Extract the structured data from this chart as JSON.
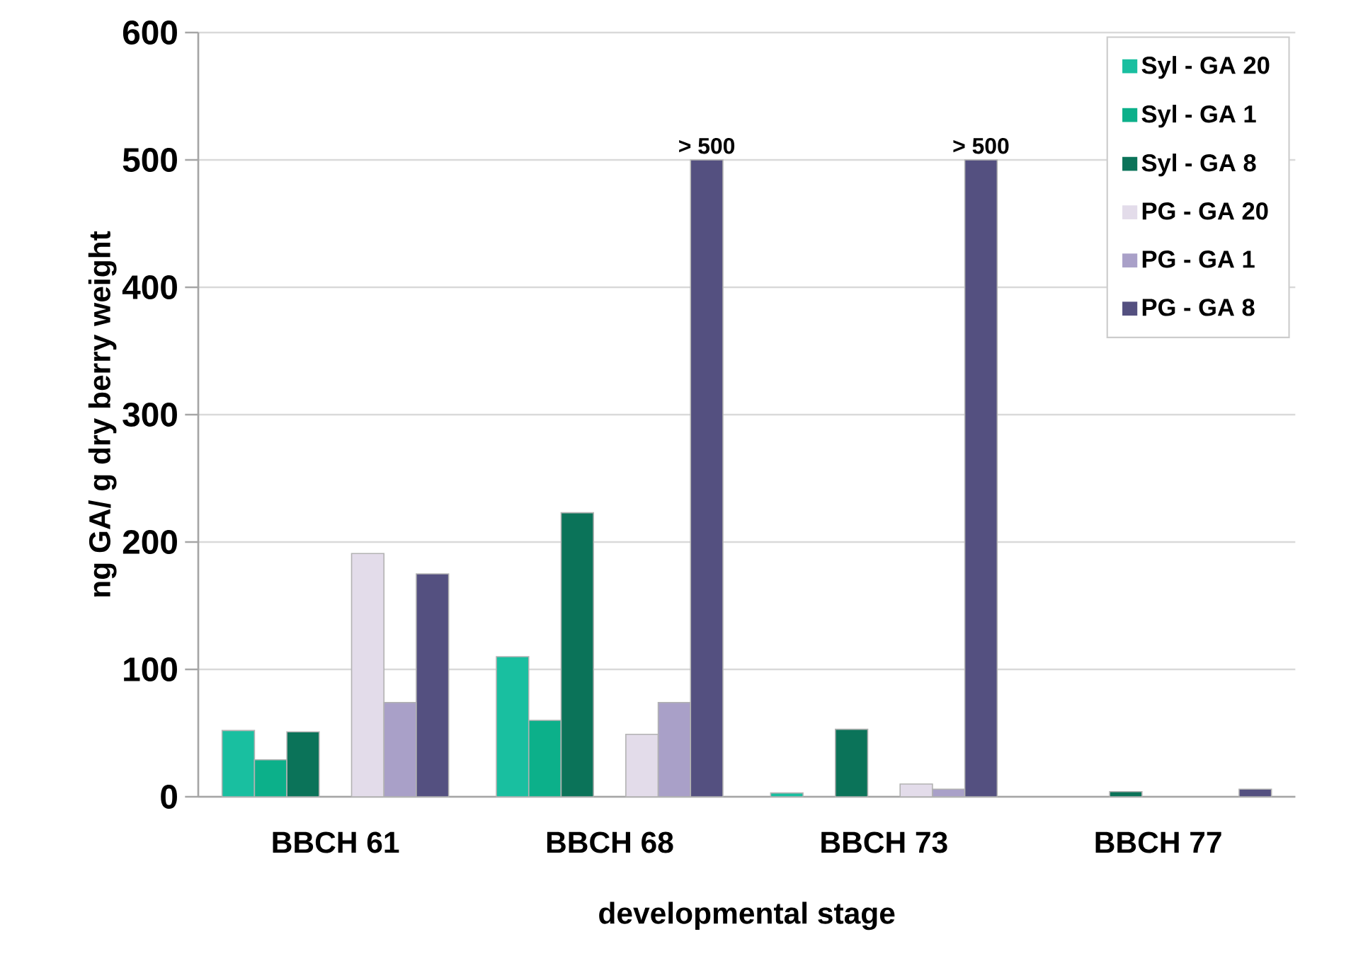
{
  "chart_data": {
    "type": "bar",
    "xlabel": "developmental stage",
    "ylabel": "ng GA/ g dry berry weight",
    "categories": [
      "BBCH 61",
      "BBCH 68",
      "BBCH 73",
      "BBCH 77"
    ],
    "series": [
      {
        "name": "Syl - GA 20",
        "color": "#19bfa0",
        "values": [
          52,
          110,
          3,
          null
        ]
      },
      {
        "name": "Syl - GA 1",
        "color": "#0cb08a",
        "values": [
          29,
          60,
          null,
          null
        ]
      },
      {
        "name": "Syl - GA 8",
        "color": "#0b7359",
        "values": [
          51,
          223,
          53,
          4
        ]
      },
      {
        "name": "PG - GA 20",
        "color": "#e3dcea",
        "values": [
          191,
          49,
          10,
          null
        ]
      },
      {
        "name": "PG - GA 1",
        "color": "#a9a0c8",
        "values": [
          74,
          74,
          6,
          null
        ]
      },
      {
        "name": "PG - GA 8",
        "color": "#545080",
        "values": [
          175,
          500,
          500,
          6
        ]
      }
    ],
    "ylim": [
      0,
      600
    ],
    "yticks": [
      0,
      100,
      200,
      300,
      400,
      500,
      600
    ],
    "grid": "y",
    "legend": "top right",
    "annotations": [
      "> 500",
      "> 500"
    ]
  }
}
